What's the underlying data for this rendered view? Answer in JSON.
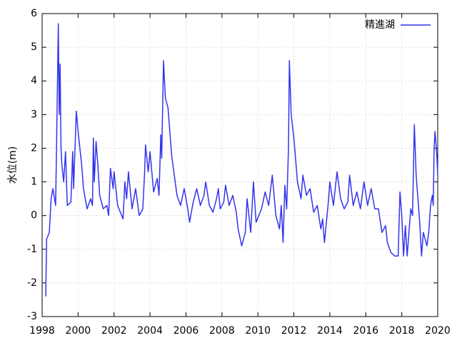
{
  "chart_data": {
    "type": "line",
    "ylabel": "水位(m)",
    "x": [
      1998.2,
      1998.25,
      1998.4,
      1998.5,
      1998.6,
      1998.75,
      1998.8,
      1998.9,
      1998.95,
      1999.0,
      1999.05,
      1999.1,
      1999.2,
      1999.3,
      1999.4,
      1999.6,
      1999.7,
      1999.75,
      1999.9,
      2000.0,
      2000.2,
      2000.3,
      2000.5,
      2000.7,
      2000.8,
      2000.85,
      2000.9,
      2001.0,
      2001.1,
      2001.2,
      2001.4,
      2001.6,
      2001.7,
      2001.8,
      2001.95,
      2002.0,
      2002.2,
      2002.5,
      2002.6,
      2002.7,
      2002.8,
      2003.0,
      2003.2,
      2003.4,
      2003.6,
      2003.7,
      2003.75,
      2003.9,
      2004.0,
      2004.2,
      2004.4,
      2004.5,
      2004.6,
      2004.65,
      2004.75,
      2004.85,
      2005.0,
      2005.2,
      2005.4,
      2005.5,
      2005.7,
      2005.9,
      2006.1,
      2006.2,
      2006.4,
      2006.6,
      2006.8,
      2007.0,
      2007.1,
      2007.3,
      2007.5,
      2007.7,
      2007.8,
      2007.9,
      2008.1,
      2008.2,
      2008.4,
      2008.6,
      2008.8,
      2008.9,
      2009.1,
      2009.3,
      2009.4,
      2009.6,
      2009.75,
      2009.9,
      2010.2,
      2010.4,
      2010.6,
      2010.8,
      2011.0,
      2011.2,
      2011.3,
      2011.4,
      2011.5,
      2011.6,
      2011.7,
      2011.75,
      2011.85,
      2012.0,
      2012.2,
      2012.4,
      2012.5,
      2012.7,
      2012.9,
      2013.1,
      2013.3,
      2013.5,
      2013.6,
      2013.7,
      2013.9,
      2014.0,
      2014.2,
      2014.4,
      2014.6,
      2014.8,
      2015.0,
      2015.1,
      2015.3,
      2015.5,
      2015.7,
      2015.9,
      2016.1,
      2016.3,
      2016.5,
      2016.7,
      2016.9,
      2017.1,
      2017.2,
      2017.4,
      2017.6,
      2017.8,
      2017.9,
      2018.0,
      2018.1,
      2018.2,
      2018.3,
      2018.5,
      2018.6,
      2018.7,
      2018.8,
      2018.9,
      2019.0,
      2019.1,
      2019.2,
      2019.4,
      2019.5,
      2019.6,
      2019.7,
      2019.75,
      2019.8,
      2019.85,
      2019.95,
      2020.0
    ],
    "series": [
      {
        "name": "精進湖",
        "color": "#3333ee",
        "values": [
          -2.4,
          -0.7,
          -0.5,
          0.5,
          0.8,
          0.3,
          2.0,
          5.7,
          3.0,
          4.5,
          2.0,
          1.5,
          1.0,
          1.9,
          0.3,
          0.4,
          1.9,
          0.8,
          3.1,
          2.5,
          1.5,
          0.8,
          0.2,
          0.5,
          0.3,
          2.3,
          1.0,
          2.2,
          1.5,
          0.6,
          0.2,
          0.3,
          0.0,
          1.4,
          0.8,
          1.3,
          0.3,
          -0.1,
          1.0,
          0.5,
          1.3,
          0.2,
          0.8,
          0.0,
          0.2,
          1.3,
          2.1,
          1.3,
          1.9,
          0.7,
          1.1,
          0.6,
          2.4,
          1.7,
          4.6,
          3.5,
          3.2,
          1.8,
          1.0,
          0.6,
          0.3,
          0.8,
          0.2,
          -0.2,
          0.4,
          0.8,
          0.3,
          0.6,
          1.0,
          0.3,
          0.1,
          0.5,
          0.8,
          0.2,
          0.4,
          0.9,
          0.3,
          0.6,
          0.1,
          -0.4,
          -0.9,
          -0.5,
          0.5,
          -0.5,
          1.0,
          -0.2,
          0.2,
          0.7,
          0.3,
          1.2,
          0.0,
          -0.4,
          0.3,
          -0.8,
          0.9,
          0.2,
          2.0,
          4.6,
          3.0,
          2.3,
          1.0,
          0.5,
          1.2,
          0.6,
          0.8,
          0.1,
          0.3,
          -0.4,
          -0.1,
          -0.8,
          0.3,
          1.0,
          0.3,
          1.3,
          0.5,
          0.2,
          0.4,
          1.2,
          0.3,
          0.7,
          0.2,
          1.0,
          0.3,
          0.8,
          0.2,
          0.2,
          -0.5,
          -0.3,
          -0.8,
          -1.1,
          -1.2,
          -1.2,
          0.7,
          0.0,
          -1.2,
          -0.3,
          -1.2,
          0.2,
          0.0,
          2.7,
          1.2,
          0.5,
          -0.2,
          -1.2,
          -0.5,
          -0.9,
          -0.5,
          0.3,
          0.6,
          0.3,
          2.0,
          2.5,
          1.8,
          1.2
        ]
      }
    ],
    "xlim": [
      1998,
      2020
    ],
    "xticks": [
      1998,
      2000,
      2002,
      2004,
      2006,
      2008,
      2010,
      2012,
      2014,
      2016,
      2018,
      2020
    ],
    "ylim": [
      -3,
      6
    ],
    "yticks": [
      -3,
      -2,
      -1,
      0,
      1,
      2,
      3,
      4,
      5,
      6
    ],
    "grid": true,
    "legend": "top-right"
  }
}
